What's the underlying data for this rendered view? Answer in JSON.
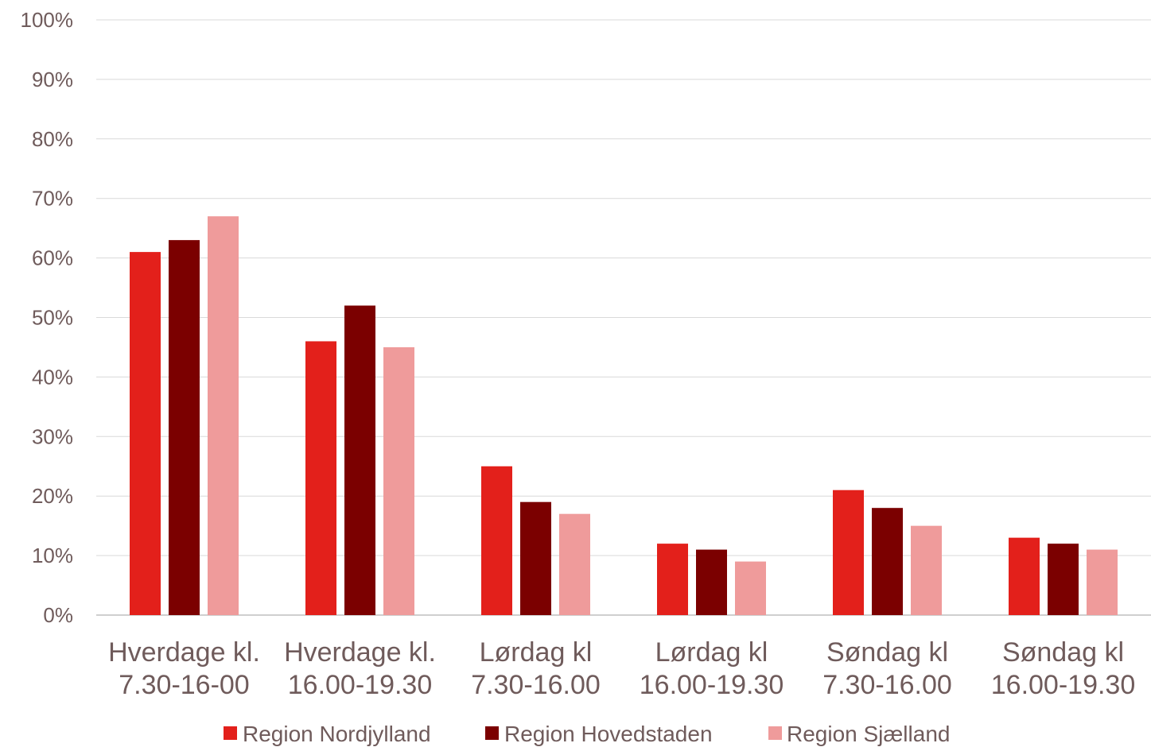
{
  "chart_data": {
    "type": "bar",
    "categories": [
      [
        "Hverdage kl.",
        "7.30-16-00"
      ],
      [
        "Hverdage kl.",
        "16.00-19.30"
      ],
      [
        "Lørdag kl",
        "7.30-16.00"
      ],
      [
        "Lørdag kl",
        "16.00-19.30"
      ],
      [
        "Søndag kl",
        "7.30-16.00"
      ],
      [
        "Søndag kl",
        "16.00-19.30"
      ]
    ],
    "series": [
      {
        "name": "Region Nordjylland",
        "color": "#e3201b",
        "values": [
          0.61,
          0.46,
          0.25,
          0.12,
          0.21,
          0.13
        ]
      },
      {
        "name": "Region Hovedstaden",
        "color": "#7b0000",
        "values": [
          0.63,
          0.52,
          0.19,
          0.11,
          0.18,
          0.12
        ]
      },
      {
        "name": "Region Sjælland",
        "color": "#ef9b9b",
        "values": [
          0.67,
          0.45,
          0.17,
          0.09,
          0.15,
          0.11
        ]
      }
    ],
    "y_ticks": [
      "0%",
      "10%",
      "20%",
      "30%",
      "40%",
      "50%",
      "60%",
      "70%",
      "80%",
      "90%",
      "100%"
    ],
    "ylim": [
      0,
      1
    ],
    "grid": true,
    "legend_position": "bottom",
    "title": "",
    "xlabel": "",
    "ylabel": ""
  }
}
